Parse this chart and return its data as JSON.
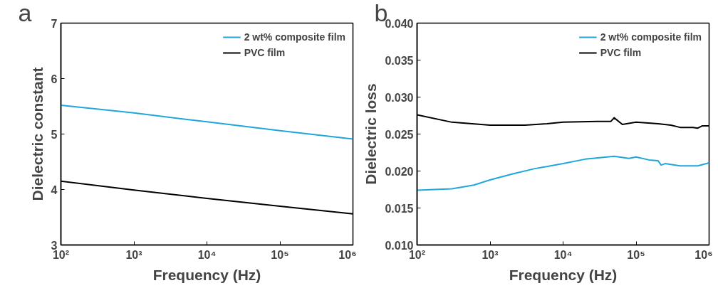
{
  "chart_data": [
    {
      "type": "line",
      "xlabel": "Frequency (Hz)",
      "ylabel": "Dielectric constant",
      "annotations": [
        "a"
      ],
      "log": "x",
      "legend": "top right",
      "grid": false,
      "x": [
        100,
        1000,
        10000,
        100000,
        1000000
      ],
      "series": [
        {
          "name": "2 wt% composite film",
          "color": "#1ea7db",
          "values": [
            5.52,
            5.38,
            5.22,
            5.06,
            4.91
          ]
        },
        {
          "name": "PVC film",
          "color": "#000000",
          "values": [
            4.15,
            3.99,
            3.84,
            3.7,
            3.56
          ]
        }
      ],
      "xlim": [
        100,
        1000000
      ],
      "xticks": [
        {
          "value": 100,
          "label": "10²"
        },
        {
          "value": 1000,
          "label": "10³"
        },
        {
          "value": 10000,
          "label": "10⁴"
        },
        {
          "value": 100000,
          "label": "10⁵"
        },
        {
          "value": 1000000,
          "label": "10⁶"
        }
      ],
      "ylim": [
        3,
        7
      ],
      "yticks": [
        3,
        4,
        5,
        6,
        7
      ]
    },
    {
      "type": "line",
      "xlabel": "Frequency (Hz)",
      "ylabel": "Dielectric loss",
      "annotations": [
        "b"
      ],
      "log": "x",
      "legend": "top right",
      "grid": false,
      "series": [
        {
          "name": "2 wt% composite film",
          "color": "#1ea7db",
          "x": [
            100,
            300,
            600,
            1000,
            2000,
            4000,
            10000,
            20000,
            40000,
            50000,
            80000,
            100000,
            150000,
            200000,
            220000,
            250000,
            400000,
            700000,
            1000000
          ],
          "values": [
            0.0174,
            0.0176,
            0.0181,
            0.0188,
            0.0196,
            0.0203,
            0.021,
            0.0216,
            0.0219,
            0.022,
            0.0217,
            0.0219,
            0.0215,
            0.0214,
            0.0208,
            0.021,
            0.0207,
            0.0207,
            0.0211
          ]
        },
        {
          "name": "PVC film",
          "color": "#000000",
          "x": [
            100,
            300,
            1000,
            3000,
            6000,
            10000,
            30000,
            45000,
            50000,
            65000,
            100000,
            200000,
            300000,
            400000,
            600000,
            700000,
            800000,
            1000000
          ],
          "values": [
            0.0276,
            0.0266,
            0.0262,
            0.0262,
            0.0264,
            0.0266,
            0.0267,
            0.0267,
            0.0272,
            0.0263,
            0.0266,
            0.0264,
            0.0262,
            0.0259,
            0.0259,
            0.0258,
            0.0261,
            0.0261
          ]
        }
      ],
      "xlim": [
        100,
        1000000
      ],
      "xticks": [
        {
          "value": 100,
          "label": "10²"
        },
        {
          "value": 1000,
          "label": "10³"
        },
        {
          "value": 10000,
          "label": "10⁴"
        },
        {
          "value": 100000,
          "label": "10⁵"
        },
        {
          "value": 1000000,
          "label": "10⁶"
        }
      ],
      "ylim": [
        0.01,
        0.04
      ],
      "yticks": [
        {
          "value": 0.01,
          "label": "0.010"
        },
        {
          "value": 0.015,
          "label": "0.015"
        },
        {
          "value": 0.02,
          "label": "0.020"
        },
        {
          "value": 0.025,
          "label": "0.025"
        },
        {
          "value": 0.03,
          "label": "0.030"
        },
        {
          "value": 0.035,
          "label": "0.035"
        },
        {
          "value": 0.04,
          "label": "0.040"
        }
      ]
    }
  ]
}
